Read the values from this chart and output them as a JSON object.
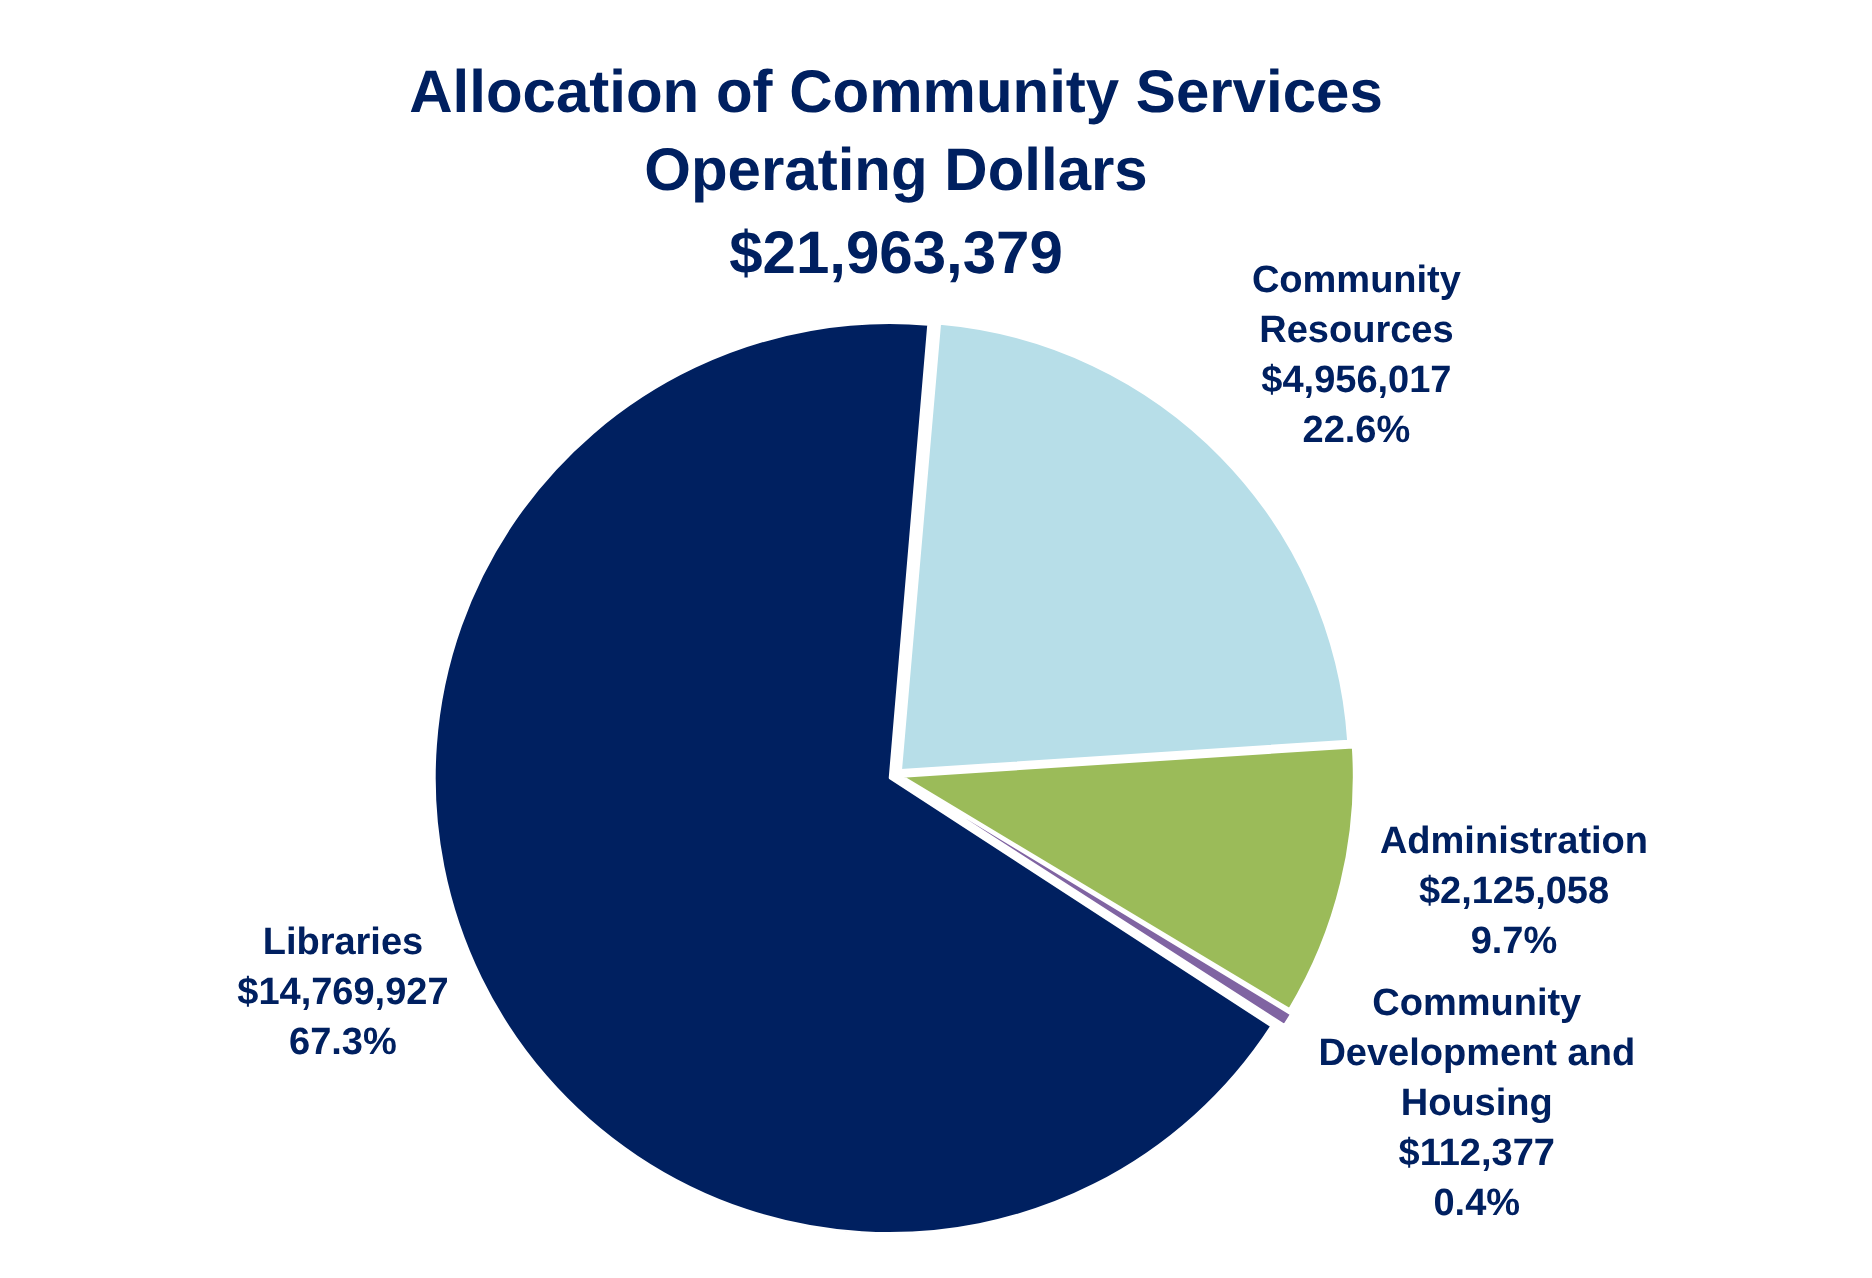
{
  "chart_data": {
    "type": "pie",
    "title": "Allocation of Community Services Operating Dollars",
    "subtitle": "$21,963,379",
    "categories": [
      "Community Resources",
      "Administration",
      "Community Development and Housing",
      "Libraries"
    ],
    "values": [
      4956017,
      2125058,
      112377,
      14769927
    ],
    "colors": [
      "#b7dee8",
      "#9bbb59",
      "#8064a2",
      "#002060"
    ],
    "value_labels": [
      "$4,956,017\n22.6%",
      "$2,125,058\n9.7%",
      "$112,377\n0.4%",
      "$14,769,927\n67.3%"
    ],
    "legend": false
  }
}
